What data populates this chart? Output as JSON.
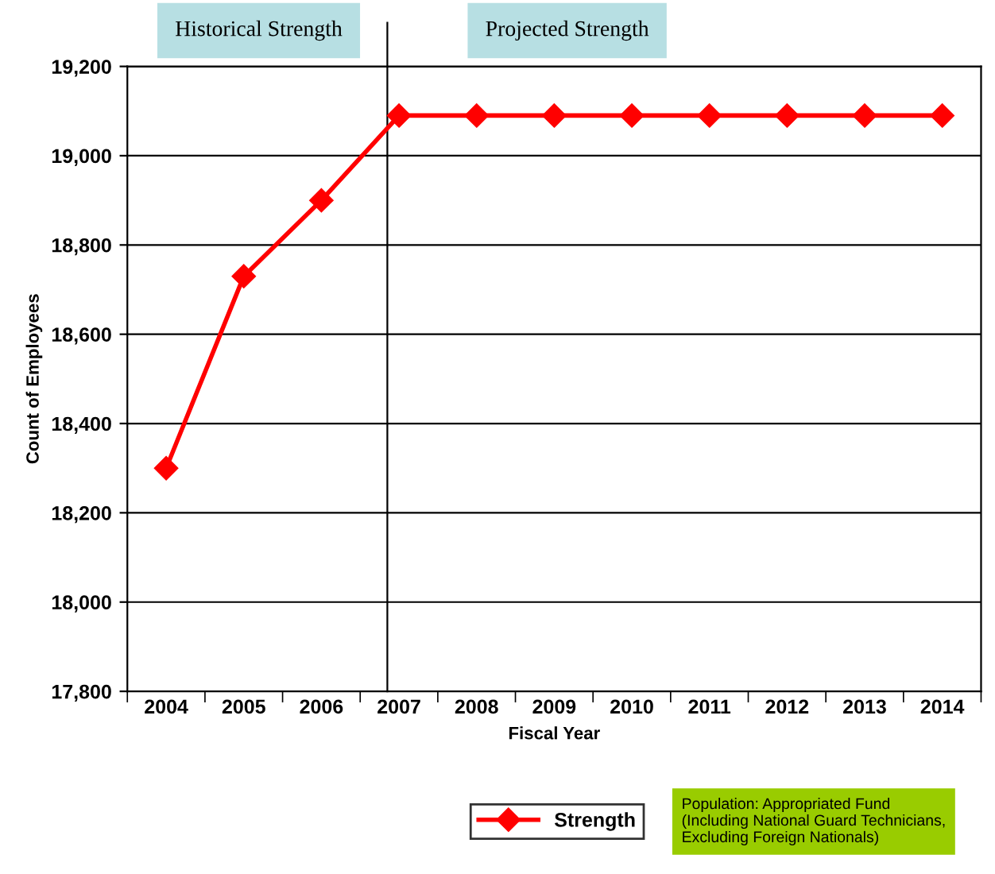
{
  "chart_data": {
    "type": "line",
    "xlabel": "Fiscal Year",
    "ylabel": "Count of Employees",
    "categories": [
      "2004",
      "2005",
      "2006",
      "2007",
      "2008",
      "2009",
      "2010",
      "2011",
      "2012",
      "2013",
      "2014"
    ],
    "series": [
      {
        "name": "Strength",
        "color": "#ff0000",
        "values": [
          18300,
          18730,
          18900,
          19090,
          19090,
          19090,
          19090,
          19090,
          19090,
          19090,
          19090
        ]
      }
    ],
    "ylim": [
      17800,
      19200
    ],
    "yticks": [
      {
        "value": 17800,
        "label": "17,800"
      },
      {
        "value": 18000,
        "label": "18,000"
      },
      {
        "value": 18200,
        "label": "18,200"
      },
      {
        "value": 18400,
        "label": "18,400"
      },
      {
        "value": 18600,
        "label": "18,600"
      },
      {
        "value": 18800,
        "label": "18,800"
      },
      {
        "value": 19000,
        "label": "19,000"
      },
      {
        "value": 19200,
        "label": "19,200"
      }
    ],
    "ref_lines": [
      {
        "axis": "x",
        "value": "2007",
        "color": "#000000"
      }
    ],
    "annotations": [
      "Historical Strength",
      "Projected Strength",
      "Population: Appropriated Fund\n(Including National Guard Technicians,\nExcluding Foreign Nationals)"
    ],
    "grid": "y",
    "legend": "bottom",
    "marker": "diamond",
    "line_style": "solid"
  }
}
